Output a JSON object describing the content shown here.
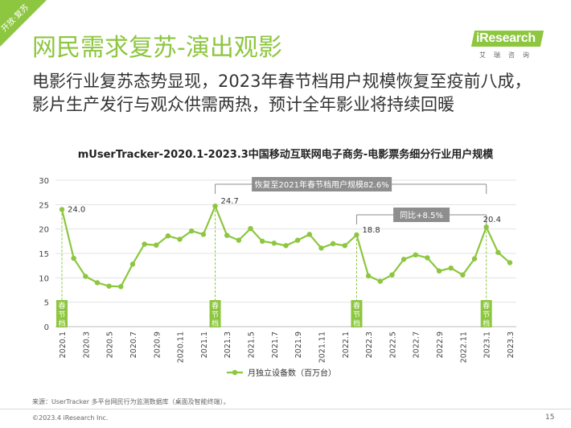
{
  "badge": "开放·复苏",
  "logo": {
    "brand": "iResearch",
    "sub": "艾瑞咨询"
  },
  "page_title": "网民需求复苏-演出观影",
  "subtitle": "电影行业复苏态势显现，2023年春节档用户规模恢复至疫前八成，影片生产发行与观众供需两热，预计全年影业将持续回暖",
  "source": "来源：UserTracker 多平台网民行为监测数据库（桌面及智能终端）。",
  "copyright": "©2023.4 iResearch Inc.",
  "page_number": "15",
  "colors": {
    "accent": "#8dc63f",
    "callout": "#8e8e8e",
    "grid": "#e3e3e3"
  },
  "chart_data": {
    "type": "line",
    "title": "mUserTracker-2020.1-2023.3中国移动互联网电子商务-电影票务细分行业用户规模",
    "x": [
      "2020.1",
      "2020.2",
      "2020.3",
      "2020.4",
      "2020.5",
      "2020.6",
      "2020.7",
      "2020.8",
      "2020.9",
      "2020.10",
      "2020.11",
      "2020.12",
      "2021.1",
      "2021.2",
      "2021.3",
      "2021.4",
      "2021.5",
      "2021.6",
      "2021.7",
      "2021.8",
      "2021.9",
      "2021.10",
      "2021.11",
      "2021.12",
      "2022.1",
      "2022.2",
      "2022.3",
      "2022.4",
      "2022.5",
      "2022.6",
      "2022.7",
      "2022.8",
      "2022.9",
      "2022.10",
      "2022.11",
      "2022.12",
      "2023.1",
      "2023.2",
      "2023.3"
    ],
    "x_tick_labels": [
      "2020.1",
      "2020.3",
      "2020.5",
      "2020.7",
      "2020.9",
      "2020.11",
      "2021.1",
      "2021.3",
      "2021.5",
      "2021.7",
      "2021.9",
      "2021.11",
      "2022.1",
      "2022.3",
      "2022.5",
      "2022.7",
      "2022.9",
      "2022.11",
      "2023.1",
      "2023.3"
    ],
    "series": [
      {
        "name": "月独立设备数（百万台）",
        "values": [
          24.0,
          14.0,
          10.3,
          9.0,
          8.3,
          8.2,
          12.8,
          16.9,
          16.7,
          18.6,
          17.9,
          19.6,
          18.9,
          24.7,
          18.7,
          17.7,
          20.1,
          17.5,
          17.1,
          16.6,
          17.7,
          18.9,
          16.1,
          17.0,
          16.6,
          18.8,
          10.4,
          9.3,
          10.6,
          13.8,
          14.7,
          14.1,
          11.4,
          12.0,
          10.6,
          13.9,
          20.4,
          15.2,
          13.1
        ]
      }
    ],
    "point_labels": [
      {
        "index": 0,
        "text": "24.0"
      },
      {
        "index": 13,
        "text": "24.7"
      },
      {
        "index": 25,
        "text": "18.8"
      },
      {
        "index": 36,
        "text": "20.4"
      }
    ],
    "spring_festival": {
      "label": "春节档",
      "indices": [
        0,
        13,
        25,
        36
      ]
    },
    "callouts": [
      {
        "text": "恢复至2021年春节档用户规模82.6%",
        "from": 13,
        "to": 36
      },
      {
        "text": "同比+8.5%",
        "from": 25,
        "to": 36
      }
    ],
    "ylim": [
      0,
      30
    ],
    "y_ticks": [
      "0",
      "5",
      "10",
      "15",
      "20",
      "25",
      "30"
    ],
    "grid": true,
    "legend": "bottom-center"
  }
}
